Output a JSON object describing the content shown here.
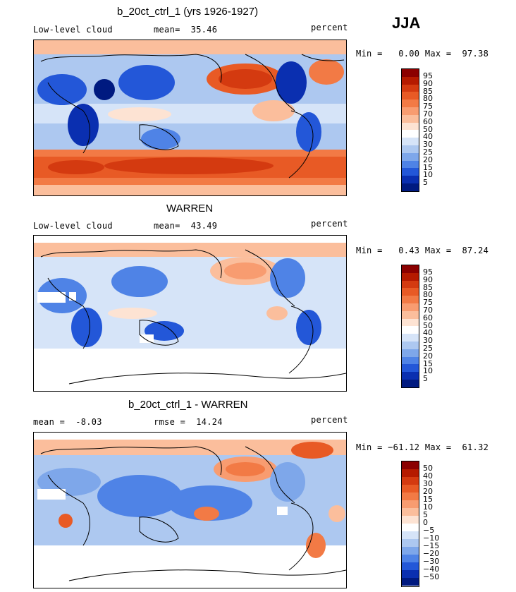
{
  "season": "JJA",
  "panels": [
    {
      "title": "b_20ct_ctrl_1 (yrs 1926-1927)",
      "left_label": "Low-level cloud",
      "center_label": "mean=  35.46",
      "right_label": "percent",
      "minmax": "Min =   0.00 Max =  97.38",
      "cbar_levels": [
        "95",
        "90",
        "85",
        "80",
        "75",
        "70",
        "60",
        "50",
        "40",
        "30",
        "25",
        "20",
        "15",
        "10",
        "5"
      ],
      "palette": "abs"
    },
    {
      "title": "WARREN",
      "left_label": "Low-level cloud",
      "center_label": "mean=  43.49",
      "right_label": "percent",
      "minmax": "Min =   0.43 Max =  87.24",
      "cbar_levels": [
        "95",
        "90",
        "85",
        "80",
        "75",
        "70",
        "60",
        "50",
        "40",
        "30",
        "25",
        "20",
        "15",
        "10",
        "5"
      ],
      "palette": "abs"
    },
    {
      "title": "b_20ct_ctrl_1 - WARREN",
      "left_label": "mean =  -8.03",
      "center_label": "rmse =  14.24",
      "right_label": "percent",
      "minmax": "Min = −61.12 Max =  61.32",
      "cbar_levels": [
        "50",
        "40",
        "30",
        "20",
        "15",
        "10",
        "5",
        "0",
        "−5",
        "−10",
        "−15",
        "−20",
        "−30",
        "−40",
        "−50"
      ],
      "palette": "diff"
    }
  ],
  "colors": {
    "abs": [
      "#8b0000",
      "#b51a00",
      "#d43a10",
      "#e85a25",
      "#f27a45",
      "#f89c70",
      "#fbbe9c",
      "#fde3d3",
      "#ffffff",
      "#d6e4f8",
      "#adc8f0",
      "#7ea7ea",
      "#4f83e6",
      "#2357d8",
      "#0a2fb0",
      "#001a80"
    ],
    "diff": [
      "#8b0000",
      "#b51a00",
      "#d43a10",
      "#e85a25",
      "#f27a45",
      "#f89c70",
      "#fbbe9c",
      "#fde3d3",
      "#ffffff",
      "#d6e4f8",
      "#adc8f0",
      "#7ea7ea",
      "#4f83e6",
      "#2357d8",
      "#0a2fb0",
      "#001a80"
    ]
  }
}
